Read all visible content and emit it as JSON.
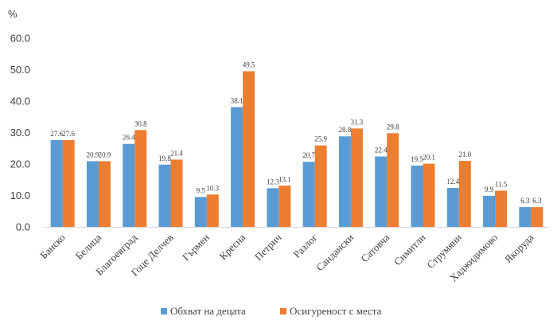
{
  "chart_data": {
    "type": "bar",
    "ylabel": "%",
    "ylim": [
      0,
      60
    ],
    "ytick_step": 10,
    "ytick_labels": [
      "0.0",
      "10.0",
      "20.0",
      "30.0",
      "40.0",
      "50.0",
      "60.0"
    ],
    "grid": false,
    "legend_position": "bottom",
    "categories": [
      "Банско",
      "Белица",
      "Благоевград",
      "Гоце Делчев",
      "Гърмен",
      "Кресна",
      "Петрич",
      "Разлог",
      "Сандански",
      "Сатовча",
      "Симитли",
      "Струмяни",
      "Хаджидимово",
      "Якоруда"
    ],
    "series": [
      {
        "name": "Обхват на децата",
        "color": "#5B9BD5",
        "values": [
          27.6,
          20.9,
          26.4,
          19.8,
          9.5,
          38.1,
          12.3,
          20.7,
          28.8,
          22.4,
          19.5,
          12.4,
          9.9,
          6.3
        ],
        "labels": [
          "27.6",
          "20.9",
          "26.4",
          "19.8",
          "9.5",
          "38.1",
          "12.3",
          "20.7",
          "28.8",
          "22.4",
          "19.5",
          "12.4",
          "9.9",
          "6.3"
        ]
      },
      {
        "name": "Осигуреност с места",
        "color": "#ED7D31",
        "values": [
          27.6,
          20.9,
          30.8,
          21.4,
          10.3,
          49.5,
          13.1,
          25.9,
          31.3,
          29.8,
          20.1,
          21.0,
          11.5,
          6.3
        ],
        "labels": [
          "27.6",
          "20.9",
          "30.8",
          "21.4",
          "10.3",
          "49.5",
          "13.1",
          "25.9",
          "31.3",
          "29.8",
          "20.1",
          "21.0",
          "11.5",
          "6.3"
        ]
      }
    ]
  }
}
